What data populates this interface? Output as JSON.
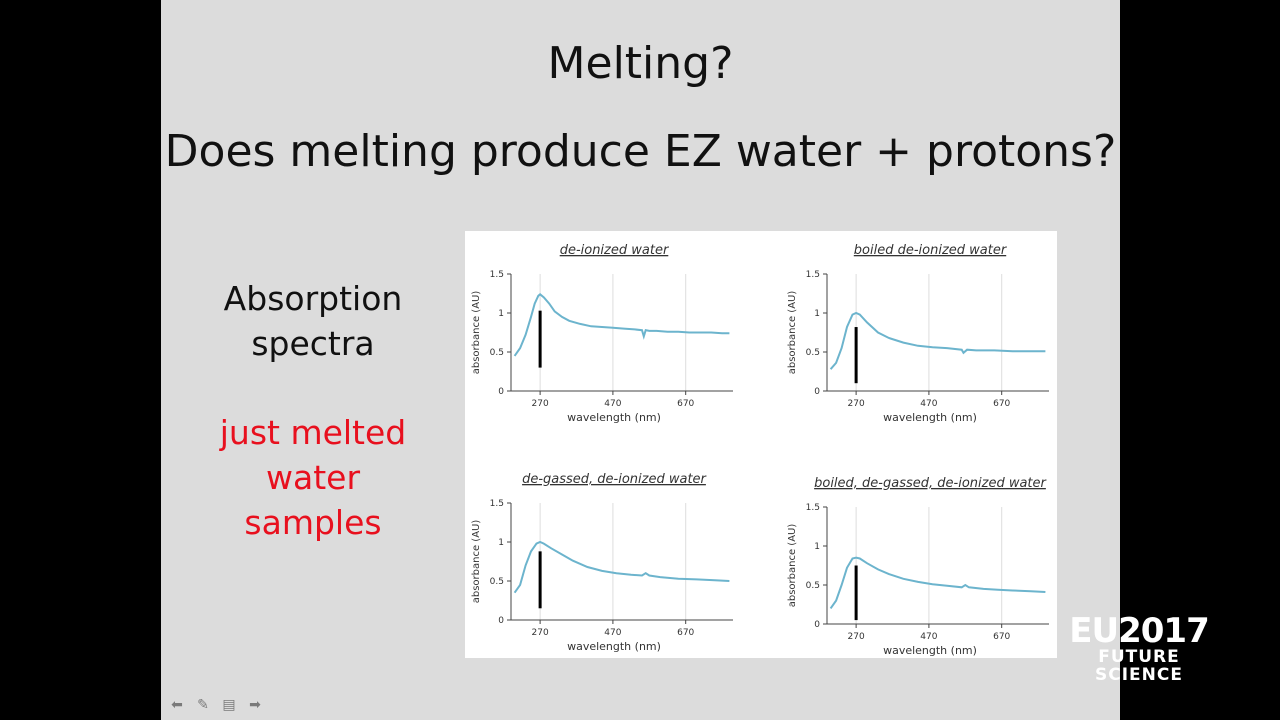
{
  "slide": {
    "title": "Melting?",
    "subtitle": "Does melting produce EZ water + protons?",
    "left_label_line1": "Absorption",
    "left_label_line2": "spectra",
    "highlight_line1": "just melted",
    "highlight_line2": "water",
    "highlight_line3": "samples",
    "highlight_color": "#e8101e"
  },
  "player_controls": {
    "prev_icon": "arrow-left-icon",
    "pen_icon": "pen-icon",
    "menu_icon": "slide-menu-icon",
    "next_icon": "arrow-right-icon"
  },
  "watermark": {
    "line1": "EU2017",
    "line2": "FUTURE SCIENCE"
  },
  "chart_data": [
    {
      "type": "line",
      "title": "de-ionized water",
      "xlabel": "wavelength (nm)",
      "ylabel": "absorbance (AU)",
      "xticks": [
        "270",
        "470",
        "670"
      ],
      "yticks": [
        "0",
        "0.5",
        "1",
        "1.5"
      ],
      "xlim": [
        190,
        800
      ],
      "ylim": [
        0,
        1.5
      ],
      "grid": "vertical",
      "marker_line": {
        "x": 270,
        "y_from": 0.3,
        "y_to": 1.03
      },
      "series": [
        {
          "name": "absorbance",
          "color": "#6cb4cd",
          "x": [
            200,
            215,
            230,
            245,
            255,
            265,
            270,
            280,
            295,
            310,
            330,
            350,
            380,
            410,
            440,
            470,
            500,
            530,
            550,
            555,
            560,
            570,
            590,
            620,
            650,
            680,
            710,
            740,
            770,
            790
          ],
          "y": [
            0.45,
            0.55,
            0.72,
            0.95,
            1.12,
            1.22,
            1.24,
            1.2,
            1.12,
            1.02,
            0.95,
            0.9,
            0.86,
            0.83,
            0.82,
            0.81,
            0.8,
            0.79,
            0.78,
            0.7,
            0.78,
            0.77,
            0.77,
            0.76,
            0.76,
            0.75,
            0.75,
            0.75,
            0.74,
            0.74
          ]
        }
      ]
    },
    {
      "type": "line",
      "title": "boiled de-ionized water",
      "xlabel": "wavelength (nm)",
      "ylabel": "absorbance (AU)",
      "xticks": [
        "270",
        "470",
        "670"
      ],
      "yticks": [
        "0",
        "0.5",
        "1",
        "1.5"
      ],
      "xlim": [
        190,
        800
      ],
      "ylim": [
        0,
        1.5
      ],
      "grid": "vertical",
      "marker_line": {
        "x": 270,
        "y_from": 0.1,
        "y_to": 0.82
      },
      "series": [
        {
          "name": "absorbance",
          "color": "#6cb4cd",
          "x": [
            200,
            215,
            230,
            245,
            260,
            270,
            280,
            300,
            330,
            360,
            400,
            440,
            480,
            520,
            560,
            565,
            575,
            600,
            650,
            700,
            750,
            790
          ],
          "y": [
            0.28,
            0.36,
            0.55,
            0.82,
            0.98,
            1.0,
            0.98,
            0.88,
            0.75,
            0.68,
            0.62,
            0.58,
            0.56,
            0.55,
            0.53,
            0.49,
            0.53,
            0.52,
            0.52,
            0.51,
            0.51,
            0.51
          ]
        }
      ]
    },
    {
      "type": "line",
      "title": "de-gassed, de-ionized water",
      "xlabel": "wavelength (nm)",
      "ylabel": "absorbance (AU)",
      "xticks": [
        "270",
        "470",
        "670"
      ],
      "yticks": [
        "0",
        "0.5",
        "1",
        "1.5"
      ],
      "xlim": [
        190,
        800
      ],
      "ylim": [
        0,
        1.5
      ],
      "grid": "vertical",
      "marker_line": {
        "x": 270,
        "y_from": 0.15,
        "y_to": 0.88
      },
      "series": [
        {
          "name": "absorbance",
          "color": "#6cb4cd",
          "x": [
            200,
            215,
            230,
            245,
            260,
            270,
            280,
            300,
            330,
            360,
            400,
            440,
            480,
            520,
            550,
            560,
            570,
            600,
            650,
            700,
            750,
            790
          ],
          "y": [
            0.35,
            0.45,
            0.7,
            0.88,
            0.98,
            1.0,
            0.98,
            0.92,
            0.84,
            0.76,
            0.68,
            0.63,
            0.6,
            0.58,
            0.57,
            0.6,
            0.57,
            0.55,
            0.53,
            0.52,
            0.51,
            0.5
          ]
        }
      ]
    },
    {
      "type": "line",
      "title": "boiled, de-gassed, de-ionized water",
      "xlabel": "wavelength (nm)",
      "ylabel": "absorbance (AU)",
      "xticks": [
        "270",
        "470",
        "670"
      ],
      "yticks": [
        "0",
        "0.5",
        "1",
        "1.5"
      ],
      "xlim": [
        190,
        800
      ],
      "ylim": [
        0,
        1.5
      ],
      "grid": "vertical",
      "marker_line": {
        "x": 270,
        "y_from": 0.05,
        "y_to": 0.75
      },
      "series": [
        {
          "name": "absorbance",
          "color": "#6cb4cd",
          "x": [
            200,
            215,
            230,
            245,
            260,
            270,
            280,
            300,
            330,
            360,
            400,
            440,
            480,
            520,
            560,
            570,
            580,
            620,
            660,
            700,
            750,
            790
          ],
          "y": [
            0.2,
            0.3,
            0.5,
            0.72,
            0.84,
            0.85,
            0.84,
            0.78,
            0.7,
            0.64,
            0.58,
            0.54,
            0.51,
            0.49,
            0.47,
            0.5,
            0.47,
            0.45,
            0.44,
            0.43,
            0.42,
            0.41
          ]
        }
      ]
    }
  ]
}
